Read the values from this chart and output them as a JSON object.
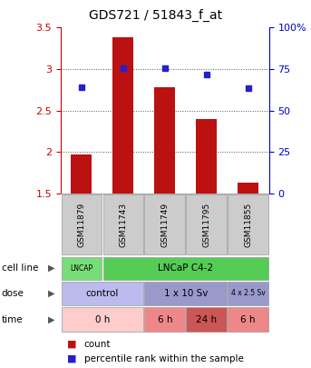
{
  "title": "GDS721 / 51843_f_at",
  "samples": [
    "GSM11879",
    "GSM11743",
    "GSM11749",
    "GSM11795",
    "GSM11855"
  ],
  "bar_values": [
    1.97,
    3.38,
    2.78,
    2.4,
    1.63
  ],
  "bar_color": "#bb1111",
  "dot_values": [
    2.78,
    3.01,
    3.01,
    2.93,
    2.77
  ],
  "dot_color": "#2222cc",
  "ylim_left": [
    1.5,
    3.5
  ],
  "ylim_right": [
    0,
    100
  ],
  "yticks_left": [
    1.5,
    2.0,
    2.5,
    3.0,
    3.5
  ],
  "yticks_right": [
    0,
    25,
    50,
    75,
    100
  ],
  "ytick_labels_left": [
    "1.5",
    "2",
    "2.5",
    "3",
    "3.5"
  ],
  "ytick_labels_right": [
    "0",
    "25",
    "50",
    "75",
    "100%"
  ],
  "grid_dotted_at": [
    2.0,
    2.5,
    3.0
  ],
  "grid_color": "#555555",
  "sample_bg_color": "#cccccc",
  "sample_border_color": "#999999",
  "left_axis_color": "#cc0000",
  "right_axis_color": "#0000cc",
  "cell_segs": [
    [
      "LNCAP",
      1,
      "#77dd77"
    ],
    [
      "LNCaP C4-2",
      4,
      "#55cc55"
    ]
  ],
  "dose_segs": [
    [
      "control",
      2,
      "#bbbbee"
    ],
    [
      "1 x 10 Sv",
      2,
      "#9999cc"
    ],
    [
      "4 x 2.5 Sv",
      1,
      "#9999cc"
    ]
  ],
  "time_segs": [
    [
      "0 h",
      2,
      "#ffcccc"
    ],
    [
      "6 h",
      1,
      "#ee8888"
    ],
    [
      "24 h",
      1,
      "#cc5555"
    ],
    [
      "6 h",
      1,
      "#ee8888"
    ]
  ],
  "row_labels": [
    "cell line",
    "dose",
    "time"
  ],
  "legend_items": [
    [
      "count",
      "#bb1111"
    ],
    [
      "percentile rank within the sample",
      "#2222cc"
    ]
  ],
  "n_cols": 5
}
